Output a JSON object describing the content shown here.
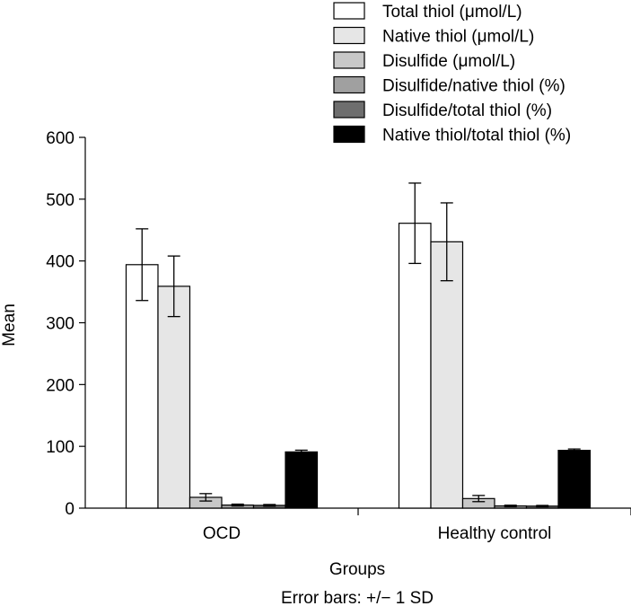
{
  "chart_data": {
    "type": "bar",
    "title": "",
    "xlabel": "Groups",
    "ylabel": "Mean",
    "footnote": "Error bars: +/− 1 SD",
    "ylim": [
      0,
      600
    ],
    "yticks": [
      "0",
      "100",
      "200",
      "300",
      "400",
      "500",
      "600"
    ],
    "grid": false,
    "legend_position": "top-right",
    "categories": [
      "OCD",
      "Healthy control"
    ],
    "series": [
      {
        "name": "Total thiol (μmol/L)",
        "color": "#ffffff",
        "values": [
          394,
          461
        ],
        "sd": [
          58,
          65
        ]
      },
      {
        "name": "Native thiol (μmol/L)",
        "color": "#e6e6e6",
        "values": [
          359,
          431
        ],
        "sd": [
          49,
          63
        ]
      },
      {
        "name": "Disulfide (μmol/L)",
        "color": "#c8c8c8",
        "values": [
          17.5,
          15.5
        ],
        "sd": [
          6,
          5
        ]
      },
      {
        "name": "Disulfide/native thiol (%)",
        "color": "#a0a0a0",
        "values": [
          5,
          3.6
        ],
        "sd": [
          1.5,
          1.2
        ]
      },
      {
        "name": "Disulfide/total thiol (%)",
        "color": "#6e6e6e",
        "values": [
          4.5,
          3.3
        ],
        "sd": [
          1.4,
          1.1
        ]
      },
      {
        "name": "Native thiol/total thiol (%)",
        "color": "#000000",
        "values": [
          91,
          93.5
        ],
        "sd": [
          2.8,
          2.2
        ]
      }
    ]
  }
}
